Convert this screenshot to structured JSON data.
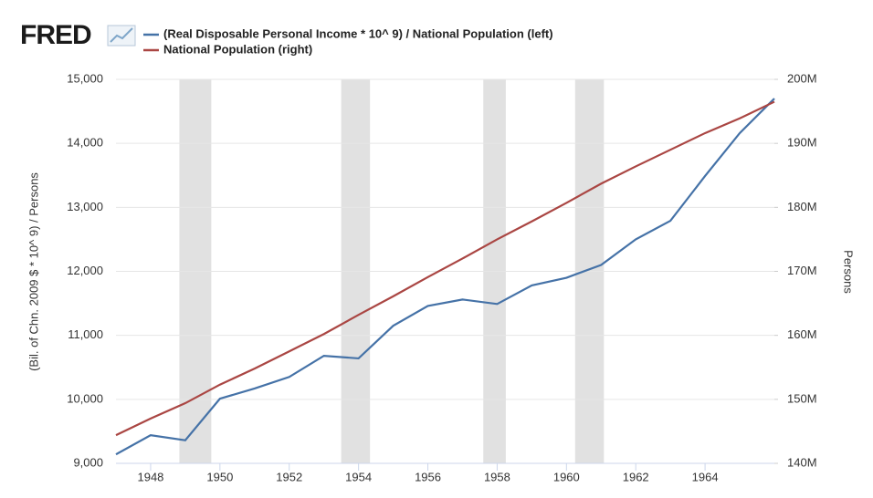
{
  "chart_data": {
    "type": "line",
    "brand": "FRED",
    "y_label": "(Bil. of Chn. 2009 $ * 10^ 9) / Persons",
    "y2_label": "Persons",
    "x": [
      1947,
      1948,
      1949,
      1950,
      1951,
      1952,
      1953,
      1954,
      1955,
      1956,
      1957,
      1958,
      1959,
      1960,
      1961,
      1962,
      1963,
      1964,
      1965,
      1966
    ],
    "xlim": [
      1947,
      1966
    ],
    "xticks": [
      1948,
      1950,
      1952,
      1954,
      1956,
      1958,
      1960,
      1962,
      1964
    ],
    "ylim": [
      9000,
      15000
    ],
    "yticks": [
      {
        "value": 9000,
        "label": "9,000"
      },
      {
        "value": 10000,
        "label": "10,000"
      },
      {
        "value": 11000,
        "label": "11,000"
      },
      {
        "value": 12000,
        "label": "12,000"
      },
      {
        "value": 13000,
        "label": "13,000"
      },
      {
        "value": 14000,
        "label": "14,000"
      },
      {
        "value": 15000,
        "label": "15,000"
      }
    ],
    "y2lim": [
      140000000,
      200000000
    ],
    "y2ticks": [
      {
        "value": 140000000,
        "label": "140M"
      },
      {
        "value": 150000000,
        "label": "150M"
      },
      {
        "value": 160000000,
        "label": "160M"
      },
      {
        "value": 170000000,
        "label": "170M"
      },
      {
        "value": 180000000,
        "label": "180M"
      },
      {
        "value": 190000000,
        "label": "190M"
      },
      {
        "value": 200000000,
        "label": "200M"
      }
    ],
    "grid": true,
    "recessions": [
      [
        1948.83,
        1949.75
      ],
      [
        1953.5,
        1954.33
      ],
      [
        1957.6,
        1958.25
      ],
      [
        1960.25,
        1961.08
      ]
    ],
    "recession_color": "#e1e1e1",
    "series": [
      {
        "name": "(Real Disposable Personal Income * 10^ 9) / National Population (left)",
        "color": "#4572a7",
        "values": [
          9140,
          9440,
          9360,
          10010,
          10170,
          10350,
          10680,
          10640,
          11150,
          11460,
          11560,
          11490,
          11780,
          11900,
          12100,
          12500,
          12790,
          13490,
          14160,
          14700
        ]
      },
      {
        "name": "National Population (right)",
        "color": "#aa4643",
        "axis": "y2",
        "values": [
          144400000,
          147000000,
          149400000,
          152300000,
          154800000,
          157500000,
          160200000,
          163200000,
          166100000,
          169100000,
          172000000,
          175000000,
          177800000,
          180700000,
          183700000,
          186400000,
          189000000,
          191600000,
          193900000,
          196500000
        ]
      }
    ]
  }
}
